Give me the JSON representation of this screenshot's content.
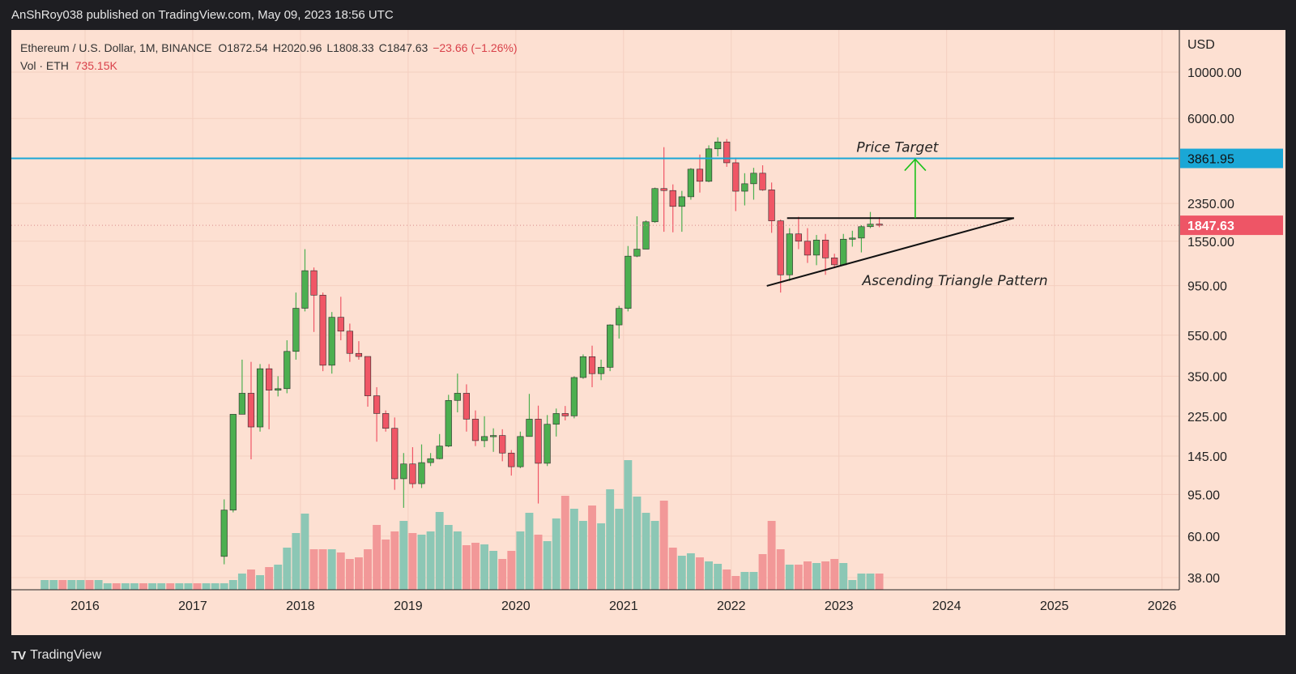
{
  "header": {
    "publisher": "AnShRoy038 published on TradingView.com, May 09, 2023 18:56 UTC"
  },
  "legend": {
    "symbol": "Ethereum / U.S. Dollar, 1M, BINANCE",
    "open": "O1872.54",
    "high": "H2020.96",
    "low": "L1808.33",
    "close": "C1847.63",
    "change": "−23.66 (−1.26%)",
    "vol_label": "Vol · ETH",
    "vol_value": "735.15K"
  },
  "footer": {
    "brand": "TradingView",
    "logo_icon": "tradingview-logo-icon"
  },
  "chart_data": {
    "type": "candlestick",
    "interval": "1M",
    "exchange": "BINANCE",
    "y_scale": "log",
    "currency_label": "USD",
    "y_ticks": [
      10000,
      6000,
      2350,
      1550,
      950,
      550,
      350,
      225,
      145,
      95,
      60,
      38
    ],
    "y_tick_labels": [
      "10000.00",
      "6000.00",
      "2350.00",
      "1550.00",
      "950.00",
      "550.00",
      "350.00",
      "225.00",
      "145.00",
      "95.00",
      "60.00",
      "38.00"
    ],
    "x_tick_labels": [
      "2016",
      "2017",
      "2018",
      "2019",
      "2020",
      "2021",
      "2022",
      "2023",
      "2024",
      "2025",
      "2026"
    ],
    "grid": true,
    "current_price": 1847.63,
    "current_price_label": "1847.63",
    "horizontal_level": 3861.95,
    "horizontal_level_label": "3861.95",
    "annotations": {
      "price_target": "Price Target",
      "pattern": "Ascending Triangle Pattern"
    },
    "colors": {
      "up": "#4caf50",
      "down": "#f05666",
      "level": "#1aa7d6",
      "arrow": "#19c219",
      "vol_up": "#8cc7b5",
      "vol_down": "#f29898",
      "price_badge": "#ee5566"
    },
    "candles": [
      {
        "t": "2017-04",
        "o": 48,
        "h": 90,
        "l": 44,
        "c": 80
      },
      {
        "t": "2017-05",
        "o": 80,
        "h": 230,
        "l": 78,
        "c": 230
      },
      {
        "t": "2017-06",
        "o": 230,
        "h": 420,
        "l": 230,
        "c": 290
      },
      {
        "t": "2017-07",
        "o": 290,
        "h": 410,
        "l": 140,
        "c": 200
      },
      {
        "t": "2017-08",
        "o": 200,
        "h": 400,
        "l": 190,
        "c": 380
      },
      {
        "t": "2017-09",
        "o": 380,
        "h": 400,
        "l": 195,
        "c": 300
      },
      {
        "t": "2017-10",
        "o": 300,
        "h": 350,
        "l": 280,
        "c": 305
      },
      {
        "t": "2017-11",
        "o": 305,
        "h": 520,
        "l": 290,
        "c": 460
      },
      {
        "t": "2017-12",
        "o": 460,
        "h": 880,
        "l": 420,
        "c": 740
      },
      {
        "t": "2018-01",
        "o": 740,
        "h": 1420,
        "l": 715,
        "c": 1120
      },
      {
        "t": "2018-02",
        "o": 1120,
        "h": 1160,
        "l": 570,
        "c": 855
      },
      {
        "t": "2018-03",
        "o": 855,
        "h": 880,
        "l": 370,
        "c": 395
      },
      {
        "t": "2018-04",
        "o": 395,
        "h": 710,
        "l": 360,
        "c": 670
      },
      {
        "t": "2018-05",
        "o": 670,
        "h": 840,
        "l": 520,
        "c": 575
      },
      {
        "t": "2018-06",
        "o": 575,
        "h": 625,
        "l": 410,
        "c": 450
      },
      {
        "t": "2018-07",
        "o": 450,
        "h": 515,
        "l": 420,
        "c": 435
      },
      {
        "t": "2018-08",
        "o": 435,
        "h": 435,
        "l": 250,
        "c": 282
      },
      {
        "t": "2018-09",
        "o": 282,
        "h": 310,
        "l": 170,
        "c": 232
      },
      {
        "t": "2018-10",
        "o": 232,
        "h": 240,
        "l": 190,
        "c": 197
      },
      {
        "t": "2018-11",
        "o": 197,
        "h": 222,
        "l": 100,
        "c": 113
      },
      {
        "t": "2018-12",
        "o": 113,
        "h": 150,
        "l": 82,
        "c": 133
      },
      {
        "t": "2019-01",
        "o": 133,
        "h": 160,
        "l": 102,
        "c": 107
      },
      {
        "t": "2019-02",
        "o": 107,
        "h": 165,
        "l": 102,
        "c": 135
      },
      {
        "t": "2019-03",
        "o": 135,
        "h": 150,
        "l": 130,
        "c": 141
      },
      {
        "t": "2019-04",
        "o": 141,
        "h": 185,
        "l": 140,
        "c": 162
      },
      {
        "t": "2019-05",
        "o": 162,
        "h": 285,
        "l": 160,
        "c": 268
      },
      {
        "t": "2019-06",
        "o": 268,
        "h": 360,
        "l": 235,
        "c": 290
      },
      {
        "t": "2019-07",
        "o": 290,
        "h": 320,
        "l": 190,
        "c": 218
      },
      {
        "t": "2019-08",
        "o": 218,
        "h": 240,
        "l": 162,
        "c": 172
      },
      {
        "t": "2019-09",
        "o": 172,
        "h": 225,
        "l": 160,
        "c": 180
      },
      {
        "t": "2019-10",
        "o": 180,
        "h": 197,
        "l": 152,
        "c": 182
      },
      {
        "t": "2019-11",
        "o": 182,
        "h": 195,
        "l": 137,
        "c": 150
      },
      {
        "t": "2019-12",
        "o": 150,
        "h": 155,
        "l": 117,
        "c": 129
      },
      {
        "t": "2020-01",
        "o": 129,
        "h": 190,
        "l": 127,
        "c": 180
      },
      {
        "t": "2020-02",
        "o": 180,
        "h": 288,
        "l": 180,
        "c": 218
      },
      {
        "t": "2020-03",
        "o": 218,
        "h": 253,
        "l": 86,
        "c": 134
      },
      {
        "t": "2020-04",
        "o": 134,
        "h": 228,
        "l": 130,
        "c": 206
      },
      {
        "t": "2020-05",
        "o": 206,
        "h": 245,
        "l": 180,
        "c": 232
      },
      {
        "t": "2020-06",
        "o": 232,
        "h": 252,
        "l": 215,
        "c": 226
      },
      {
        "t": "2020-07",
        "o": 226,
        "h": 350,
        "l": 220,
        "c": 345
      },
      {
        "t": "2020-08",
        "o": 345,
        "h": 445,
        "l": 340,
        "c": 434
      },
      {
        "t": "2020-09",
        "o": 434,
        "h": 490,
        "l": 310,
        "c": 360
      },
      {
        "t": "2020-10",
        "o": 360,
        "h": 420,
        "l": 335,
        "c": 386
      },
      {
        "t": "2020-11",
        "o": 386,
        "h": 620,
        "l": 370,
        "c": 616
      },
      {
        "t": "2020-12",
        "o": 616,
        "h": 760,
        "l": 530,
        "c": 739
      },
      {
        "t": "2021-01",
        "o": 739,
        "h": 1470,
        "l": 715,
        "c": 1315
      },
      {
        "t": "2021-02",
        "o": 1315,
        "h": 2040,
        "l": 1300,
        "c": 1420
      },
      {
        "t": "2021-03",
        "o": 1420,
        "h": 1950,
        "l": 1420,
        "c": 1920
      },
      {
        "t": "2021-04",
        "o": 1920,
        "h": 2800,
        "l": 1900,
        "c": 2770
      },
      {
        "t": "2021-05",
        "o": 2770,
        "h": 4370,
        "l": 1720,
        "c": 2710
      },
      {
        "t": "2021-06",
        "o": 2710,
        "h": 2900,
        "l": 1710,
        "c": 2275
      },
      {
        "t": "2021-07",
        "o": 2275,
        "h": 2700,
        "l": 1720,
        "c": 2530
      },
      {
        "t": "2021-08",
        "o": 2530,
        "h": 3470,
        "l": 2450,
        "c": 3430
      },
      {
        "t": "2021-09",
        "o": 3430,
        "h": 4030,
        "l": 2650,
        "c": 3000
      },
      {
        "t": "2021-10",
        "o": 3000,
        "h": 4460,
        "l": 2970,
        "c": 4290
      },
      {
        "t": "2021-11",
        "o": 4290,
        "h": 4870,
        "l": 3950,
        "c": 4630
      },
      {
        "t": "2021-12",
        "o": 4630,
        "h": 4780,
        "l": 3520,
        "c": 3680
      },
      {
        "t": "2022-01",
        "o": 3680,
        "h": 3900,
        "l": 2160,
        "c": 2690
      },
      {
        "t": "2022-02",
        "o": 2690,
        "h": 3280,
        "l": 2300,
        "c": 2920
      },
      {
        "t": "2022-03",
        "o": 2920,
        "h": 3480,
        "l": 2450,
        "c": 3280
      },
      {
        "t": "2022-04",
        "o": 3280,
        "h": 3580,
        "l": 2700,
        "c": 2730
      },
      {
        "t": "2022-05",
        "o": 2730,
        "h": 2960,
        "l": 1700,
        "c": 1940
      },
      {
        "t": "2022-06",
        "o": 1940,
        "h": 1970,
        "l": 880,
        "c": 1070
      },
      {
        "t": "2022-07",
        "o": 1070,
        "h": 1790,
        "l": 1000,
        "c": 1680
      },
      {
        "t": "2022-08",
        "o": 1680,
        "h": 2030,
        "l": 1420,
        "c": 1550
      },
      {
        "t": "2022-09",
        "o": 1550,
        "h": 1790,
        "l": 1220,
        "c": 1330
      },
      {
        "t": "2022-10",
        "o": 1330,
        "h": 1660,
        "l": 1190,
        "c": 1570
      },
      {
        "t": "2022-11",
        "o": 1570,
        "h": 1680,
        "l": 1070,
        "c": 1290
      },
      {
        "t": "2022-12",
        "o": 1290,
        "h": 1350,
        "l": 1150,
        "c": 1195
      },
      {
        "t": "2023-01",
        "o": 1195,
        "h": 1680,
        "l": 1190,
        "c": 1585
      },
      {
        "t": "2023-02",
        "o": 1585,
        "h": 1740,
        "l": 1460,
        "c": 1605
      },
      {
        "t": "2023-03",
        "o": 1605,
        "h": 1850,
        "l": 1370,
        "c": 1820
      },
      {
        "t": "2023-04",
        "o": 1820,
        "h": 2140,
        "l": 1790,
        "c": 1870
      },
      {
        "t": "2023-05",
        "o": 1872.54,
        "h": 2020.96,
        "l": 1808.33,
        "c": 1847.63
      }
    ],
    "volume_up_down_note": "volume bars colored by candle direction",
    "triangle_resistance": 2000,
    "triangle_support_start": {
      "t": "2022-06",
      "price": 930
    },
    "triangle_apex": {
      "t": "2024-08",
      "price": 2000
    }
  }
}
